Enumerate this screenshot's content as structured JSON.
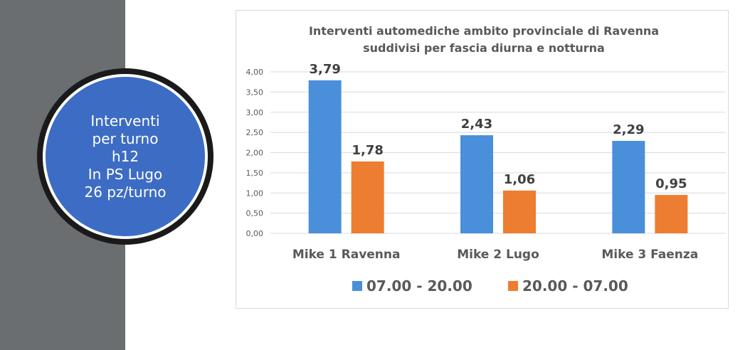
{
  "badge": {
    "lines": [
      "Interventi",
      "per turno",
      "h12",
      "In PS Lugo",
      "26 pz/turno"
    ],
    "fill_color": "#3d6cc4"
  },
  "chart_data": {
    "type": "bar",
    "title": [
      "Interventi automediche ambito provinciale di Ravenna",
      "suddivisi per fascia diurna e notturna"
    ],
    "categories": [
      "Mike 1 Ravenna",
      "Mike 2 Lugo",
      "Mike 3 Faenza"
    ],
    "series": [
      {
        "name": "07.00 - 20.00",
        "values": [
          3.79,
          2.43,
          2.29
        ],
        "labels": [
          "3,79",
          "2,43",
          "2,29"
        ],
        "color": "#4a8fd9"
      },
      {
        "name": "20.00 - 07.00",
        "values": [
          1.78,
          1.06,
          0.95
        ],
        "labels": [
          "1,78",
          "1,06",
          "0,95"
        ],
        "color": "#ed7d31"
      }
    ],
    "ylim": [
      0,
      4
    ],
    "yticks": [
      "0,00",
      "0,50",
      "1,00",
      "1,50",
      "2,00",
      "2,50",
      "3,00",
      "3,50",
      "4,00"
    ],
    "ytick_values": [
      0,
      0.5,
      1,
      1.5,
      2,
      2.5,
      3,
      3.5,
      4
    ],
    "xlabel": "",
    "ylabel": "",
    "grid": true,
    "legend_position": "bottom"
  }
}
